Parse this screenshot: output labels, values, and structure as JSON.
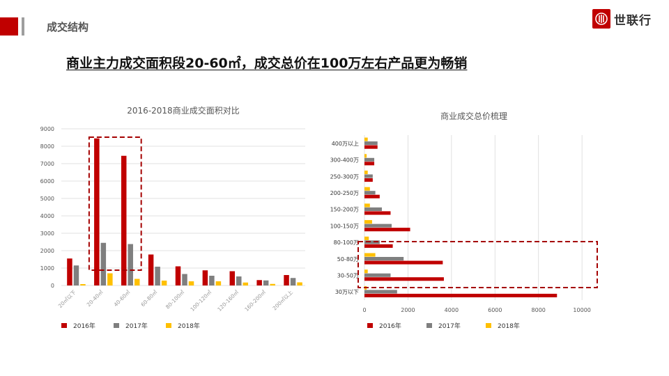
{
  "header": {
    "section_title": "成交结构",
    "logo_text": "世联行",
    "headline": "商业主力成交面积段20-60㎡，成交总价在100万左右产品更为畅销"
  },
  "colors": {
    "s2016": "#c00000",
    "s2017": "#7f7f7f",
    "s2018": "#ffc000",
    "highlight": "#a50000",
    "accent": "#c00000"
  },
  "chart_data": [
    {
      "type": "bar",
      "title": "2016-2018商业成交面积对比",
      "categories": [
        "20㎡以下",
        "20-40㎡",
        "40-60㎡",
        "60-80㎡",
        "80-100㎡",
        "100-120㎡",
        "120-160㎡",
        "160-200㎡",
        "200㎡以上"
      ],
      "series": [
        {
          "name": "2016年",
          "values": [
            1550,
            8450,
            7450,
            1780,
            1100,
            870,
            820,
            310,
            600
          ]
        },
        {
          "name": "2017年",
          "values": [
            1150,
            2450,
            2380,
            1080,
            660,
            560,
            520,
            290,
            430
          ]
        },
        {
          "name": "2018年",
          "values": [
            80,
            700,
            380,
            280,
            240,
            240,
            170,
            90,
            180
          ]
        }
      ],
      "ylim": [
        0,
        9000
      ],
      "yticks": [
        "0",
        "1000",
        "2000",
        "3000",
        "4000",
        "5000",
        "6000",
        "7000",
        "8000",
        "9000"
      ],
      "grid": true,
      "legend": "bottom",
      "highlight": "20-40㎡ to 40-60㎡"
    },
    {
      "type": "bar",
      "orientation": "horizontal",
      "title": "商业成交总价梳理",
      "categories": [
        "400万以上",
        "300-400万",
        "250-300万",
        "200-250万",
        "150-200万",
        "100-150万",
        "80-100万",
        "50-80万",
        "30-50万",
        "30万以下"
      ],
      "series": [
        {
          "name": "2016年",
          "values": [
            600,
            450,
            380,
            700,
            1200,
            2100,
            1300,
            3600,
            3650,
            8850
          ]
        },
        {
          "name": "2017年",
          "values": [
            600,
            450,
            380,
            500,
            800,
            1250,
            700,
            1800,
            1200,
            1500
          ]
        },
        {
          "name": "2018年",
          "values": [
            150,
            100,
            150,
            250,
            250,
            350,
            200,
            500,
            150,
            100
          ]
        }
      ],
      "xlim": [
        0,
        10700
      ],
      "xticks": [
        "0",
        "2000",
        "4000",
        "6000",
        "8000",
        "10000"
      ],
      "grid": true,
      "legend": "bottom",
      "highlight": "30-50万 to 80-100万"
    }
  ]
}
